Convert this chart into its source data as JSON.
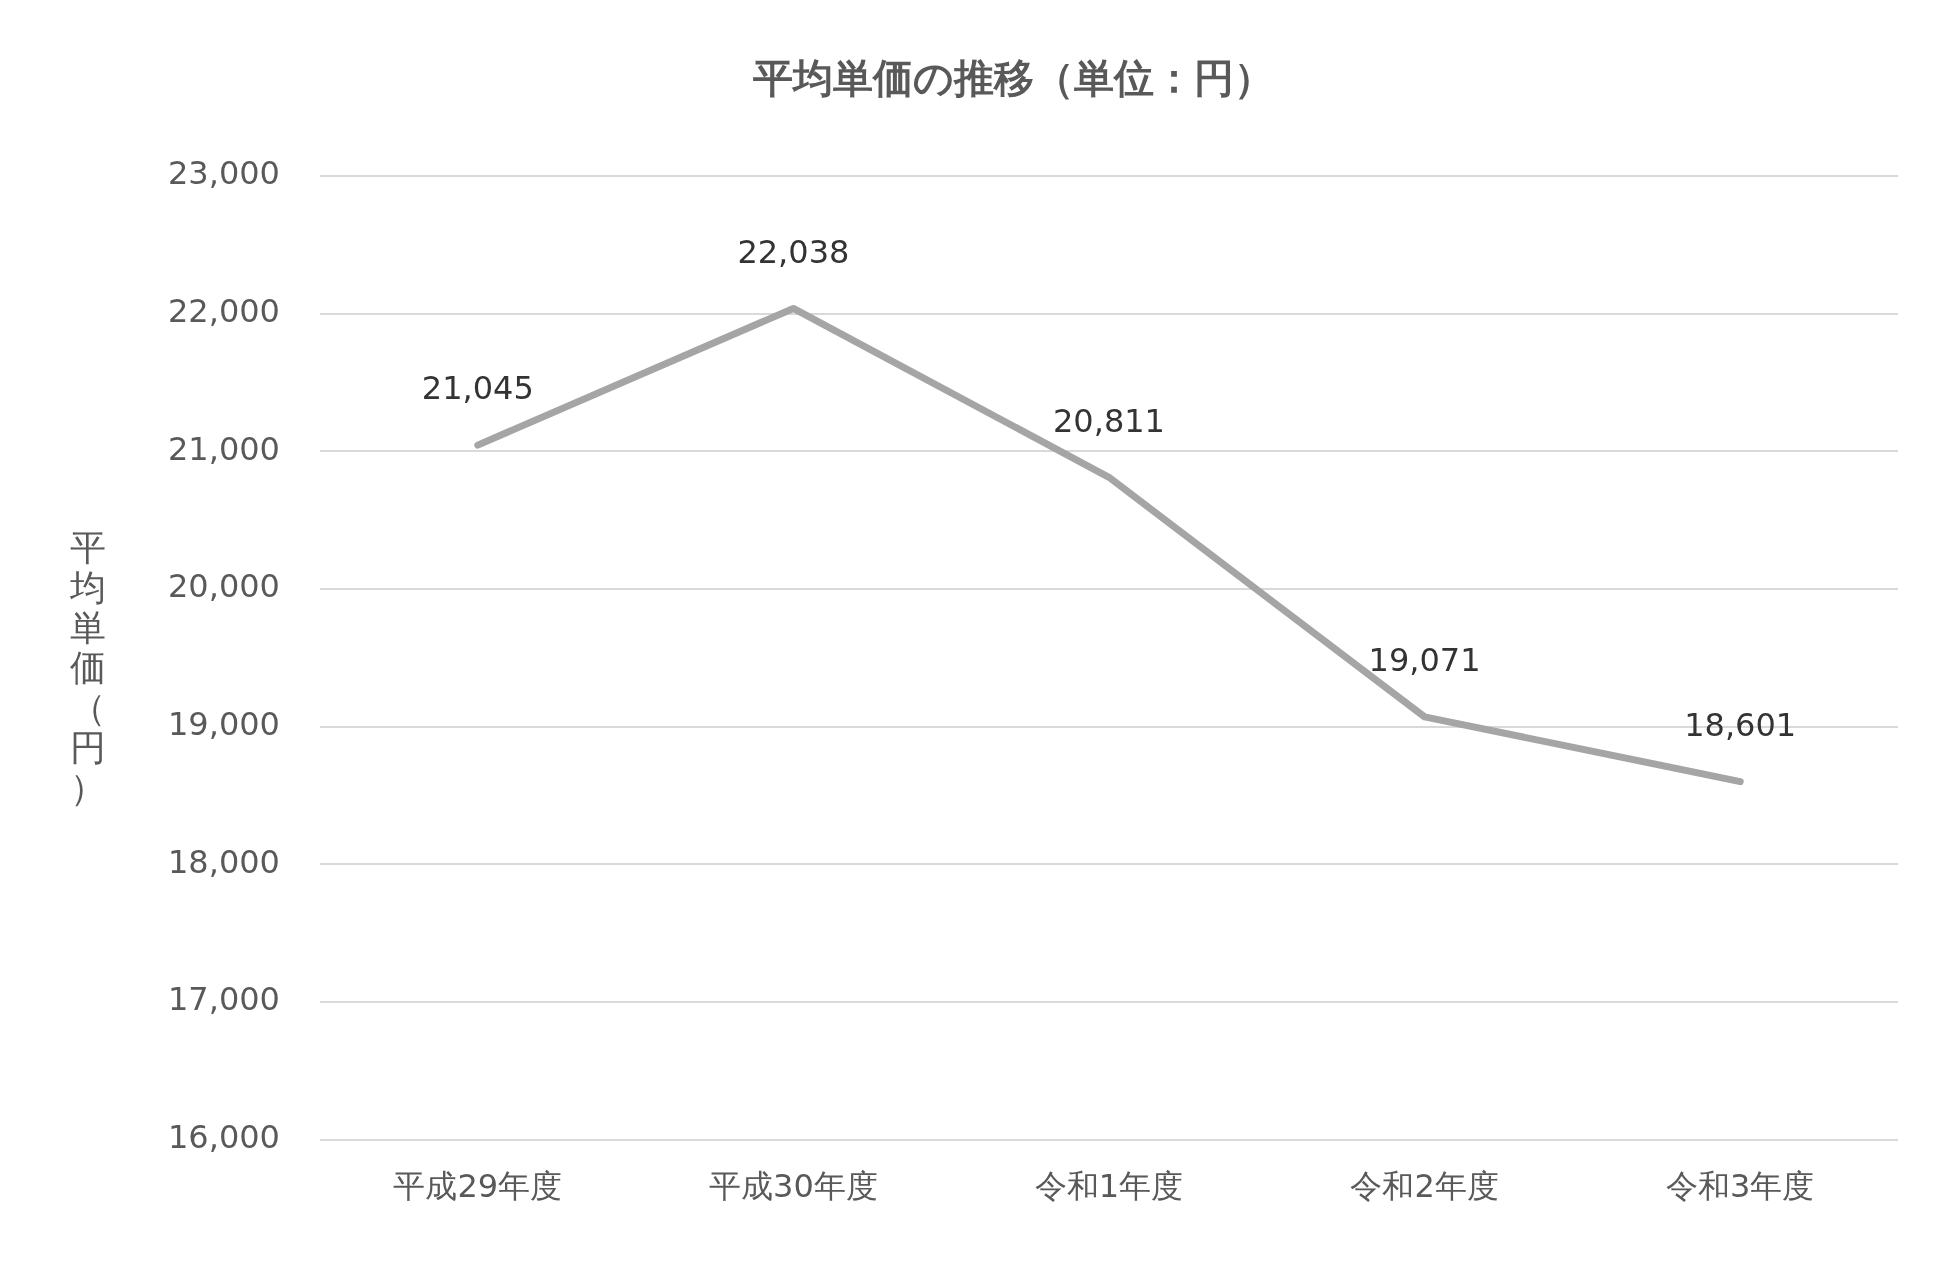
{
  "chart_data": {
    "type": "line",
    "title": "平均単価の推移（単位：円）",
    "ylabel": "平均単価（円）",
    "categories": [
      "平成29年度",
      "平成30年度",
      "令和1年度",
      "令和2年度",
      "令和3年度"
    ],
    "series": [
      {
        "color": "#a5a5a5",
        "values": [
          21045,
          22038,
          20811,
          19071,
          18601
        ],
        "value_labels": [
          "21,045",
          "22,038",
          "20,811",
          "19,071",
          "18,601"
        ]
      }
    ],
    "ylim": [
      16000,
      23000
    ],
    "yticks": [
      {
        "value": 16000,
        "label": "16,000"
      },
      {
        "value": 17000,
        "label": "17,000"
      },
      {
        "value": 18000,
        "label": "18,000"
      },
      {
        "value": 19000,
        "label": "19,000"
      },
      {
        "value": 20000,
        "label": "20,000"
      },
      {
        "value": 21000,
        "label": "21,000"
      },
      {
        "value": 22000,
        "label": "22,000"
      },
      {
        "value": 23000,
        "label": "23,000"
      }
    ],
    "grid": "y",
    "legend": false,
    "marker": "none",
    "line_style": "solid"
  }
}
